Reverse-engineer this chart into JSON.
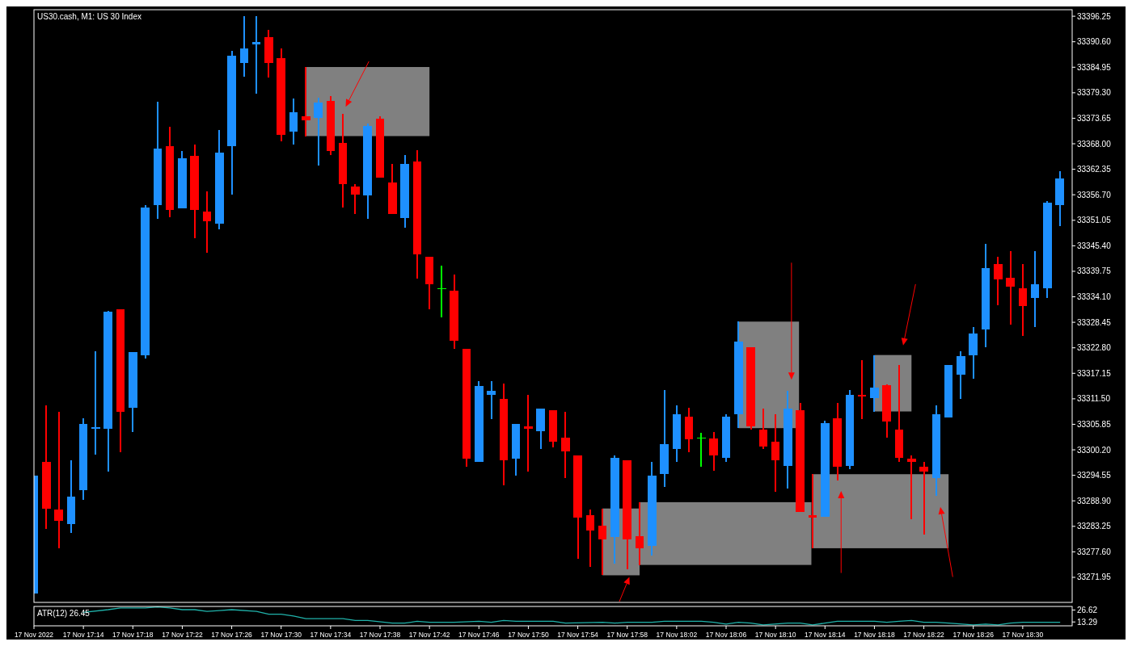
{
  "chart_data": [
    {
      "type": "candlestick",
      "title": "US30.cash, M1:  US 30 Index",
      "tick_labels": "y",
      "x": [
        "2022-11-17T17:10",
        "2022-11-17T17:11",
        "2022-11-17T17:12",
        "2022-11-17T17:13",
        "2022-11-17T17:14",
        "2022-11-17T17:15",
        "2022-11-17T17:16",
        "2022-11-17T17:17",
        "2022-11-17T17:18",
        "2022-11-17T17:19",
        "2022-11-17T17:20",
        "2022-11-17T17:21",
        "2022-11-17T17:22",
        "2022-11-17T17:23",
        "2022-11-17T17:24",
        "2022-11-17T17:25",
        "2022-11-17T17:26",
        "2022-11-17T17:27",
        "2022-11-17T17:28",
        "2022-11-17T17:29",
        "2022-11-17T17:30",
        "2022-11-17T17:31",
        "2022-11-17T17:32",
        "2022-11-17T17:33",
        "2022-11-17T17:34",
        "2022-11-17T17:35",
        "2022-11-17T17:36",
        "2022-11-17T17:37",
        "2022-11-17T17:38",
        "2022-11-17T17:39",
        "2022-11-17T17:40",
        "2022-11-17T17:41",
        "2022-11-17T17:42",
        "2022-11-17T17:43",
        "2022-11-17T17:44",
        "2022-11-17T17:45",
        "2022-11-17T17:46",
        "2022-11-17T17:47",
        "2022-11-17T17:48",
        "2022-11-17T17:49",
        "2022-11-17T17:50",
        "2022-11-17T17:51",
        "2022-11-17T17:52",
        "2022-11-17T17:53",
        "2022-11-17T17:54",
        "2022-11-17T17:55",
        "2022-11-17T17:56",
        "2022-11-17T17:57",
        "2022-11-17T17:58",
        "2022-11-17T17:59",
        "2022-11-17T18:00",
        "2022-11-17T18:01",
        "2022-11-17T18:02",
        "2022-11-17T18:03",
        "2022-11-17T18:04",
        "2022-11-17T18:05",
        "2022-11-17T18:06",
        "2022-11-17T18:07",
        "2022-11-17T18:08",
        "2022-11-17T18:09",
        "2022-11-17T18:10",
        "2022-11-17T18:11",
        "2022-11-17T18:12",
        "2022-11-17T18:13",
        "2022-11-17T18:14",
        "2022-11-17T18:15",
        "2022-11-17T18:16",
        "2022-11-17T18:17",
        "2022-11-17T18:18",
        "2022-11-17T18:19",
        "2022-11-17T18:20",
        "2022-11-17T18:21",
        "2022-11-17T18:22",
        "2022-11-17T18:23",
        "2022-11-17T18:24",
        "2022-11-17T18:25",
        "2022-11-17T18:26",
        "2022-11-17T18:27",
        "2022-11-17T18:28",
        "2022-11-17T18:29",
        "2022-11-17T18:30",
        "2022-11-17T18:31",
        "2022-11-17T18:32",
        "2022-11-17T18:33"
      ],
      "ohlc": [
        [
          33268.4,
          33294.5,
          33268.4,
          33294.5
        ],
        [
          33297.5,
          33310.1,
          33282.6,
          33287.2
        ],
        [
          33286.9,
          33308.6,
          33278.4,
          33284.4
        ],
        [
          33283.7,
          33297.8,
          33281.8,
          33289.9
        ],
        [
          33291.3,
          33307.1,
          33289.2,
          33305.9
        ],
        [
          33304.9,
          33322.0,
          33299.2,
          33305.2
        ],
        [
          33304.9,
          33330.9,
          33295.3,
          33330.8
        ],
        [
          33331.3,
          33331.3,
          33299.7,
          33308.7
        ],
        [
          33309.6,
          33321.8,
          33304.1,
          33321.8
        ],
        [
          33321.2,
          33354.4,
          33320.5,
          33353.9
        ],
        [
          33354.4,
          33377.3,
          33351.4,
          33366.9
        ],
        [
          33367.4,
          33371.8,
          33351.7,
          33353.3
        ],
        [
          33353.7,
          33366.4,
          33353.7,
          33364.8
        ],
        [
          33365.3,
          33367.8,
          33347.0,
          33353.3
        ],
        [
          33353.0,
          33357.4,
          33343.8,
          33350.9
        ],
        [
          33350.3,
          33371.1,
          33349.1,
          33366.0
        ],
        [
          33367.4,
          33388.6,
          33356.8,
          33387.5
        ],
        [
          33385.9,
          33396.3,
          33382.9,
          33389.1
        ],
        [
          33390.0,
          33396.3,
          33379.1,
          33390.5
        ],
        [
          33391.6,
          33393.3,
          33382.6,
          33385.9
        ],
        [
          33387.0,
          33389.1,
          33368.5,
          33369.9
        ],
        [
          33370.6,
          33378.0,
          33367.8,
          33375.0
        ],
        [
          33374.1,
          33385.0,
          33369.7,
          33373.2
        ],
        [
          33373.8,
          33378.2,
          33363.2,
          33377.1
        ],
        [
          33377.5,
          33378.5,
          33365.5,
          33366.4
        ],
        [
          33368.1,
          33374.6,
          33353.9,
          33359.0
        ],
        [
          33358.6,
          33359.0,
          33352.4,
          33356.8
        ],
        [
          33356.5,
          33372.5,
          33351.4,
          33372.0
        ],
        [
          33373.6,
          33374.1,
          33360.5,
          33360.5
        ],
        [
          33359.5,
          33363.5,
          33352.4,
          33352.4
        ],
        [
          33351.6,
          33365.5,
          33349.4,
          33363.5
        ],
        [
          33364.1,
          33366.5,
          33338.2,
          33343.5
        ],
        [
          33342.9,
          33342.9,
          33331.3,
          33336.9
        ],
        [
          33336.0,
          33341.0,
          33329.5,
          33336.0
        ],
        [
          33335.5,
          33339.0,
          33322.5,
          33324.4
        ],
        [
          33322.5,
          33322.5,
          33296.4,
          33298.3
        ],
        [
          33297.5,
          33315.4,
          33297.5,
          33314.4
        ],
        [
          33312.4,
          33315.4,
          33307.0,
          33313.3
        ],
        [
          33311.4,
          33314.9,
          33292.3,
          33297.8
        ],
        [
          33298.3,
          33305.9,
          33294.5,
          33305.9
        ],
        [
          33305.4,
          33312.4,
          33295.3,
          33304.9
        ],
        [
          33304.3,
          33309.4,
          33300.4,
          33309.4
        ],
        [
          33308.9,
          33308.9,
          33300.8,
          33302.0
        ],
        [
          33302.9,
          33308.6,
          33293.9,
          33299.9
        ],
        [
          33299.0,
          33299.0,
          33276.0,
          33285.1
        ],
        [
          33285.8,
          33286.9,
          33274.2,
          33282.3
        ],
        [
          33283.4,
          33287.2,
          33272.4,
          33280.4
        ],
        [
          33280.9,
          33298.9,
          33274.9,
          33298.5
        ],
        [
          33297.8,
          33297.8,
          33273.8,
          33280.4
        ],
        [
          33281.1,
          33288.6,
          33274.7,
          33278.4
        ],
        [
          33278.9,
          33297.6,
          33276.7,
          33294.5
        ],
        [
          33294.8,
          33313.5,
          33292.0,
          33301.5
        ],
        [
          33300.4,
          33310.1,
          33297.5,
          33308.0
        ],
        [
          33307.5,
          33309.6,
          33299.7,
          33302.6
        ],
        [
          33302.9,
          33304.0,
          33296.4,
          33302.9
        ],
        [
          33302.7,
          33304.1,
          33295.5,
          33298.9
        ],
        [
          33298.5,
          33308.0,
          33297.5,
          33307.5
        ],
        [
          33308.0,
          33328.6,
          33305.0,
          33324.2
        ],
        [
          33323.0,
          33323.0,
          33304.7,
          33305.4
        ],
        [
          33304.7,
          33309.4,
          33300.4,
          33301.0
        ],
        [
          33302.0,
          33308.0,
          33290.9,
          33297.8
        ],
        [
          33296.7,
          33313.3,
          33291.6,
          33309.4
        ],
        [
          33308.9,
          33310.5,
          33286.4,
          33286.4
        ],
        [
          33285.8,
          33294.8,
          33278.4,
          33285.1
        ],
        [
          33285.3,
          33306.6,
          33285.3,
          33306.1
        ],
        [
          33307.1,
          33310.5,
          33293.4,
          33296.4
        ],
        [
          33296.7,
          33313.5,
          33295.9,
          33312.3
        ],
        [
          33312.4,
          33320.0,
          33307.0,
          33312.1
        ],
        [
          33311.6,
          33321.2,
          33308.7,
          33314.0
        ],
        [
          33314.5,
          33314.7,
          33302.9,
          33306.4
        ],
        [
          33304.7,
          33319.0,
          33297.5,
          33298.5
        ],
        [
          33298.2,
          33299.0,
          33284.8,
          33297.5
        ],
        [
          33296.4,
          33297.5,
          33281.4,
          33295.3
        ],
        [
          33293.9,
          33310.1,
          33290.1,
          33308.0
        ],
        [
          33307.3,
          33319.0,
          33307.3,
          33319.0
        ],
        [
          33316.8,
          33322.1,
          33311.4,
          33320.9
        ],
        [
          33321.2,
          33327.4,
          33316.0,
          33326.0
        ],
        [
          33326.9,
          33345.9,
          33323.0,
          33340.5
        ],
        [
          33341.3,
          33342.9,
          33332.2,
          33338.0
        ],
        [
          33338.3,
          33344.2,
          33327.9,
          33336.4
        ],
        [
          33335.9,
          33341.3,
          33325.5,
          33332.0
        ],
        [
          33333.9,
          33344.3,
          33327.4,
          33336.9
        ],
        [
          33335.9,
          33355.3,
          33333.9,
          33354.9
        ],
        [
          33354.4,
          33362.0,
          33349.8,
          33360.4
        ]
      ],
      "colors": [
        "#1e90ff",
        "#ff0000",
        "#ff0000",
        "#1e90ff",
        "#1e90ff",
        "#1e90ff",
        "#1e90ff",
        "#ff0000",
        "#1e90ff",
        "#1e90ff",
        "#1e90ff",
        "#ff0000",
        "#1e90ff",
        "#ff0000",
        "#ff0000",
        "#1e90ff",
        "#1e90ff",
        "#1e90ff",
        "#1e90ff",
        "#ff0000",
        "#ff0000",
        "#1e90ff",
        "#ff0000",
        "#1e90ff",
        "#ff0000",
        "#ff0000",
        "#ff0000",
        "#1e90ff",
        "#ff0000",
        "#ff0000",
        "#1e90ff",
        "#ff0000",
        "#ff0000",
        "#00ff00",
        "#ff0000",
        "#ff0000",
        "#1e90ff",
        "#1e90ff",
        "#ff0000",
        "#1e90ff",
        "#ff0000",
        "#1e90ff",
        "#ff0000",
        "#ff0000",
        "#ff0000",
        "#ff0000",
        "#ff0000",
        "#1e90ff",
        "#ff0000",
        "#ff0000",
        "#1e90ff",
        "#1e90ff",
        "#1e90ff",
        "#ff0000",
        "#00ff00",
        "#ff0000",
        "#1e90ff",
        "#1e90ff",
        "#ff0000",
        "#ff0000",
        "#ff0000",
        "#1e90ff",
        "#ff0000",
        "#ff0000",
        "#1e90ff",
        "#ff0000",
        "#1e90ff",
        "#ff0000",
        "#1e90ff",
        "#ff0000",
        "#ff0000",
        "#ff0000",
        "#ff0000",
        "#1e90ff",
        "#1e90ff",
        "#1e90ff",
        "#1e90ff",
        "#1e90ff",
        "#ff0000",
        "#ff0000",
        "#ff0000",
        "#1e90ff",
        "#1e90ff",
        "#1e90ff"
      ],
      "xlim": [
        "2022-11-17T17:10",
        "2022-11-17T18:34"
      ],
      "ylim": [
        33266.4,
        33397.7
      ],
      "yticks": [
        {
          "value": 33396.25,
          "label": "33396.25"
        },
        {
          "value": 33390.6,
          "label": "33390.60"
        },
        {
          "value": 33384.95,
          "label": "33384.95"
        },
        {
          "value": 33379.3,
          "label": "33379.30"
        },
        {
          "value": 33373.65,
          "label": "33373.65"
        },
        {
          "value": 33368.0,
          "label": "33368.00"
        },
        {
          "value": 33362.35,
          "label": "33362.35"
        },
        {
          "value": 33356.7,
          "label": "33356.70"
        },
        {
          "value": 33351.05,
          "label": "33351.05"
        },
        {
          "value": 33345.4,
          "label": "33345.40"
        },
        {
          "value": 33339.75,
          "label": "33339.75"
        },
        {
          "value": 33334.1,
          "label": "33334.10"
        },
        {
          "value": 33328.45,
          "label": "33328.45"
        },
        {
          "value": 33322.8,
          "label": "33322.80"
        },
        {
          "value": 33317.15,
          "label": "33317.15"
        },
        {
          "value": 33311.5,
          "label": "33311.50"
        },
        {
          "value": 33305.85,
          "label": "33305.85"
        },
        {
          "value": 33300.2,
          "label": "33300.20"
        },
        {
          "value": 33294.55,
          "label": "33294.55"
        },
        {
          "value": 33288.9,
          "label": "33288.90"
        },
        {
          "value": 33283.25,
          "label": "33283.25"
        },
        {
          "value": 33277.6,
          "label": "33277.60"
        },
        {
          "value": 33271.95,
          "label": "33271.95"
        }
      ]
    },
    {
      "type": "line",
      "title": "ATR(12) 26.45",
      "series": [
        {
          "color": "#20b2aa",
          "x": [
            "2022-11-17T17:14",
            "2022-11-17T17:16",
            "2022-11-17T17:17",
            "2022-11-17T17:19",
            "2022-11-17T17:20",
            "2022-11-17T17:21",
            "2022-11-17T17:22",
            "2022-11-17T17:23",
            "2022-11-17T17:24",
            "2022-11-17T17:25",
            "2022-11-17T17:26",
            "2022-11-17T17:28",
            "2022-11-17T17:29",
            "2022-11-17T17:30",
            "2022-11-17T17:31",
            "2022-11-17T17:32",
            "2022-11-17T17:35",
            "2022-11-17T17:36",
            "2022-11-17T17:37",
            "2022-11-17T17:39",
            "2022-11-17T17:40",
            "2022-11-17T17:41",
            "2022-11-17T17:42",
            "2022-11-17T17:44",
            "2022-11-17T17:46",
            "2022-11-17T17:47",
            "2022-11-17T17:48",
            "2022-11-17T17:49",
            "2022-11-17T17:52",
            "2022-11-17T17:53",
            "2022-11-17T17:56",
            "2022-11-17T17:57",
            "2022-11-17T17:58",
            "2022-11-17T18:00",
            "2022-11-17T18:01",
            "2022-11-17T18:04",
            "2022-11-17T18:05",
            "2022-11-17T18:06",
            "2022-11-17T18:07",
            "2022-11-17T18:08",
            "2022-11-17T18:09",
            "2022-11-17T18:11",
            "2022-11-17T18:12",
            "2022-11-17T18:13",
            "2022-11-17T18:14",
            "2022-11-17T18:15",
            "2022-11-17T18:18",
            "2022-11-17T18:19",
            "2022-11-17T18:20",
            "2022-11-17T18:21",
            "2022-11-17T18:22",
            "2022-11-17T18:23",
            "2022-11-17T18:24",
            "2022-11-17T18:26",
            "2022-11-17T18:27",
            "2022-11-17T18:28",
            "2022-11-17T18:29",
            "2022-11-17T18:30",
            "2022-11-17T18:33"
          ],
          "values": [
            24,
            27,
            29,
            29,
            30,
            29,
            27,
            27,
            25,
            26,
            27,
            25,
            22,
            22,
            20,
            17,
            17,
            15,
            15,
            12,
            12,
            14,
            13,
            13,
            14,
            13,
            15,
            14,
            14,
            12,
            13,
            12,
            13,
            13,
            14,
            14,
            13,
            11,
            13,
            12,
            10,
            12,
            12,
            10,
            12,
            14,
            14,
            13,
            14,
            15,
            13,
            13,
            12,
            10,
            11,
            10,
            12,
            13,
            13
          ]
        }
      ],
      "xlim": [
        "2022-11-17T17:10",
        "2022-11-17T18:34"
      ],
      "xticks": [
        {
          "value": "2022-11-17T17:10",
          "label": "17 Nov 2022"
        },
        {
          "value": "2022-11-17T17:14",
          "label": "17 Nov 17:14"
        },
        {
          "value": "2022-11-17T17:18",
          "label": "17 Nov 17:18"
        },
        {
          "value": "2022-11-17T17:22",
          "label": "17 Nov 17:22"
        },
        {
          "value": "2022-11-17T17:26",
          "label": "17 Nov 17:26"
        },
        {
          "value": "2022-11-17T17:30",
          "label": "17 Nov 17:30"
        },
        {
          "value": "2022-11-17T17:34",
          "label": "17 Nov 17:34"
        },
        {
          "value": "2022-11-17T17:38",
          "label": "17 Nov 17:38"
        },
        {
          "value": "2022-11-17T17:42",
          "label": "17 Nov 17:42"
        },
        {
          "value": "2022-11-17T17:46",
          "label": "17 Nov 17:46"
        },
        {
          "value": "2022-11-17T17:50",
          "label": "17 Nov 17:50"
        },
        {
          "value": "2022-11-17T17:54",
          "label": "17 Nov 17:54"
        },
        {
          "value": "2022-11-17T17:58",
          "label": "17 Nov 17:58"
        },
        {
          "value": "2022-11-17T18:02",
          "label": "17 Nov 18:02"
        },
        {
          "value": "2022-11-17T18:06",
          "label": "17 Nov 18:06"
        },
        {
          "value": "2022-11-17T18:10",
          "label": "17 Nov 18:10"
        },
        {
          "value": "2022-11-17T18:14",
          "label": "17 Nov 18:14"
        },
        {
          "value": "2022-11-17T18:18",
          "label": "17 Nov 18:18"
        },
        {
          "value": "2022-11-17T18:22",
          "label": "17 Nov 18:22"
        },
        {
          "value": "2022-11-17T18:26",
          "label": "17 Nov 18:26"
        },
        {
          "value": "2022-11-17T18:30",
          "label": "17 Nov 18:30"
        }
      ],
      "ylim": [
        9.0,
        30.6
      ],
      "yticks": [
        26.62,
        13.29
      ]
    }
  ]
}
